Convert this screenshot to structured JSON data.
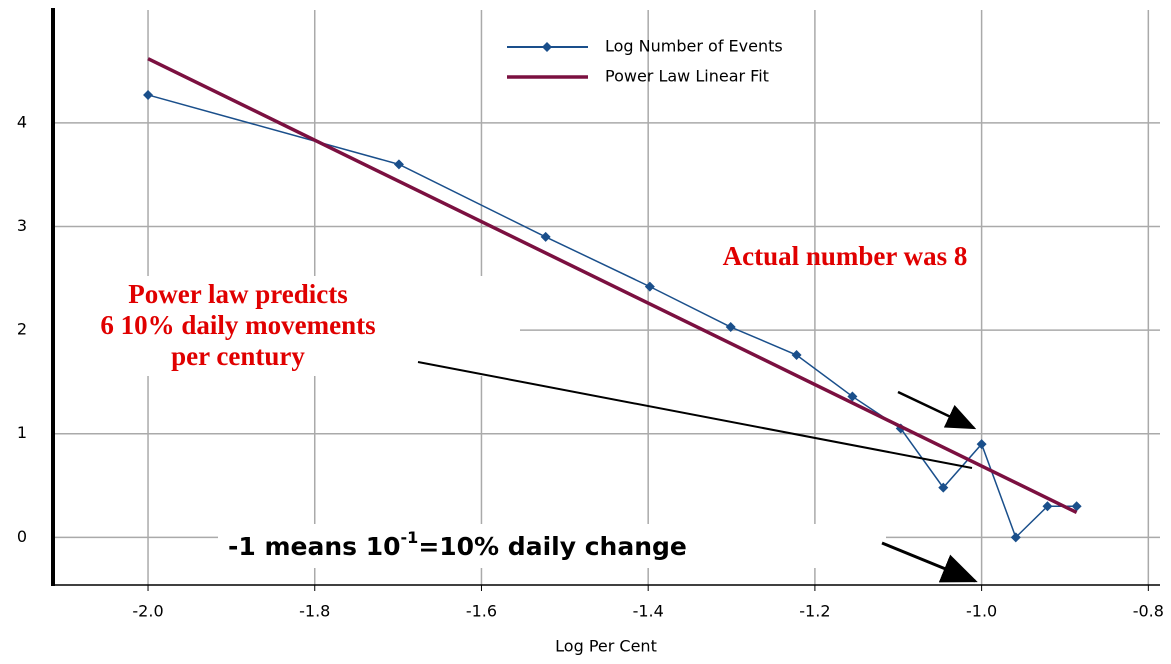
{
  "chart_data": {
    "type": "line",
    "xlabel": "Log Per Cent",
    "series": [
      {
        "name": "Log Number of Events",
        "color": "#1a4f8b",
        "markers": true,
        "x": [
          -2.0,
          -1.699,
          -1.523,
          -1.398,
          -1.301,
          -1.222,
          -1.155,
          -1.097,
          -1.046,
          -1.0,
          -0.959,
          -0.921,
          -0.886
        ],
        "values": [
          4.27,
          3.6,
          2.9,
          2.42,
          2.03,
          1.76,
          1.36,
          1.05,
          0.48,
          0.9,
          0.0,
          0.3,
          0.3
        ]
      },
      {
        "name": "Power Law Linear Fit",
        "color": "#7b1040",
        "markers": false,
        "x": [
          -2.0,
          -0.886
        ],
        "values": [
          4.62,
          0.24
        ]
      }
    ],
    "xlim": [
      -2.114,
      -0.786
    ],
    "ylim": [
      -0.46,
      5.09
    ],
    "xticks": [
      {
        "value": -2.0,
        "label": "-2.0"
      },
      {
        "value": -1.8,
        "label": "-1.8"
      },
      {
        "value": -1.6,
        "label": "-1.6"
      },
      {
        "value": -1.4,
        "label": "-1.4"
      },
      {
        "value": -1.2,
        "label": "-1.2"
      },
      {
        "value": -1.0,
        "label": "-1.0"
      },
      {
        "value": -0.8,
        "label": "-0.8"
      }
    ],
    "yticks": [
      0,
      1,
      2,
      3,
      4
    ],
    "grid": true,
    "annotations": {
      "prediction": [
        "Power law predicts",
        "6 10% daily movements",
        "per century"
      ],
      "actual": "Actual number was 8",
      "meaning": [
        "-1 means 10",
        "-1",
        "=10% daily change"
      ]
    }
  }
}
